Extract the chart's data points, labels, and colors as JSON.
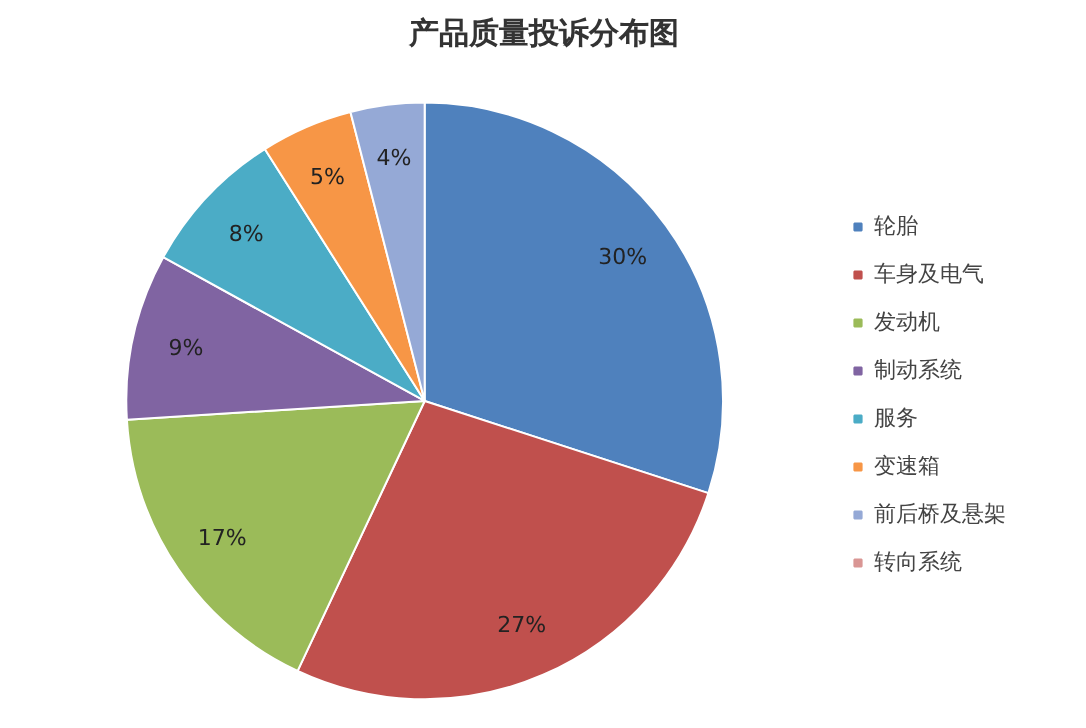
{
  "chart_data": {
    "type": "pie",
    "title": "产品质量投诉分布图",
    "categories": [
      "轮胎",
      "车身及电气",
      "发动机",
      "制动系统",
      "服务",
      "变速箱",
      "前后桥及悬架",
      "转向系统"
    ],
    "values": [
      30,
      27,
      17,
      9,
      8,
      5,
      4,
      0
    ],
    "colors": [
      "#4f81bd",
      "#c0504d",
      "#9bbb59",
      "#8064a2",
      "#4bacc6",
      "#f79646",
      "#95a9d6",
      "#d99694"
    ],
    "value_labels": [
      "30%",
      "27%",
      "17%",
      "9%",
      "8%",
      "5%",
      "4%",
      null
    ],
    "legend": "right"
  }
}
